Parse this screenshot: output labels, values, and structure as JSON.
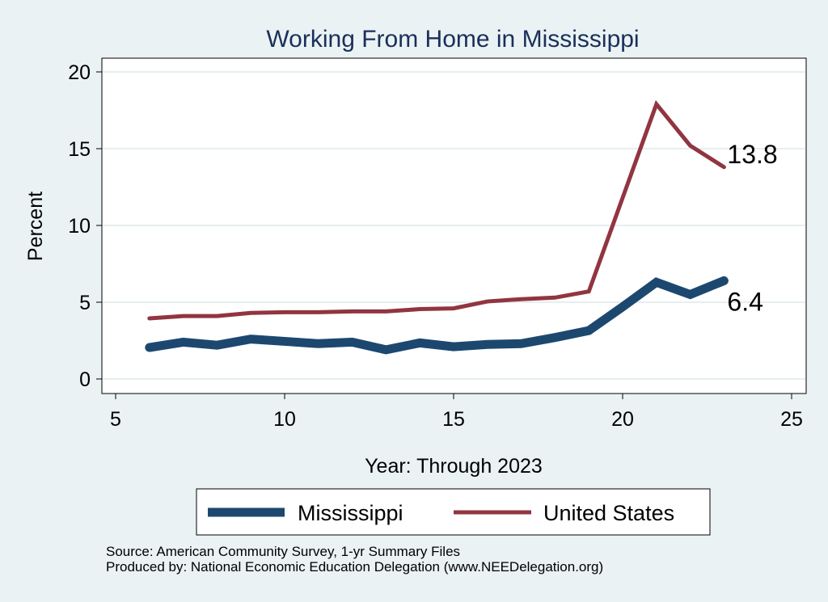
{
  "chart_data": {
    "type": "line",
    "title": "Working From Home in Mississippi",
    "xlabel": "Year: Through 2023",
    "ylabel": "Percent",
    "xlim": [
      4.5,
      25.5
    ],
    "ylim": [
      -0.9,
      20.9
    ],
    "xticks": [
      5,
      10,
      15,
      20,
      25
    ],
    "yticks": [
      0,
      5,
      10,
      15,
      20
    ],
    "grid": true,
    "legend_position": "bottom",
    "x": [
      6,
      7,
      8,
      9,
      10,
      11,
      12,
      13,
      14,
      15,
      16,
      17,
      18,
      19,
      20,
      21,
      22,
      23
    ],
    "series": [
      {
        "name": "Mississippi",
        "color": "#1c4870",
        "values": [
          2.05,
          2.4,
          2.2,
          2.6,
          2.45,
          2.3,
          2.4,
          1.9,
          2.35,
          2.1,
          2.25,
          2.3,
          2.7,
          3.15,
          4.7,
          6.3,
          5.5,
          6.4
        ],
        "end_label": "6.4"
      },
      {
        "name": "United States",
        "color": "#913540",
        "values": [
          3.95,
          4.1,
          4.1,
          4.3,
          4.35,
          4.35,
          4.4,
          4.4,
          4.55,
          4.6,
          5.05,
          5.2,
          5.3,
          5.7,
          11.8,
          17.9,
          15.2,
          13.8
        ],
        "end_label": "13.8"
      }
    ]
  },
  "notes": {
    "source": "Source: American Community Survey, 1-yr Summary Files",
    "producer": "Produced by: National Economic Education Delegation (www.NEEDelegation.org)"
  }
}
